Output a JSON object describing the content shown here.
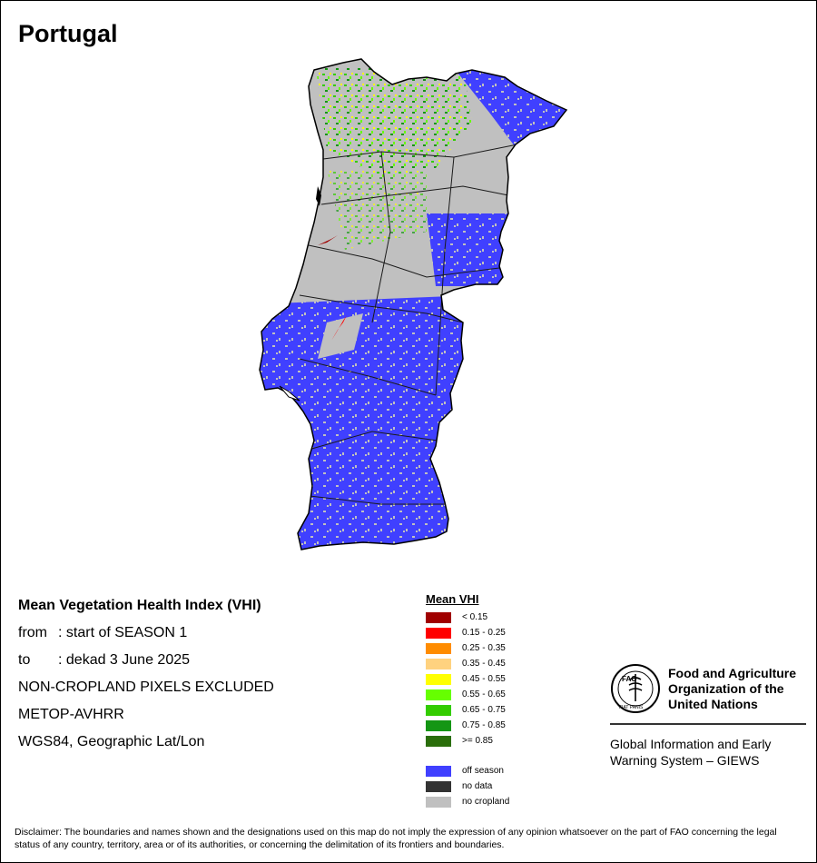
{
  "header": {
    "title": "Portugal"
  },
  "info": {
    "heading": "Mean Vegetation Health Index (VHI)",
    "from_label": "from",
    "from_value": ": start of SEASON 1",
    "to_label": "to",
    "to_value": ": dekad 3 June 2025",
    "exclusion": "NON-CROPLAND PIXELS EXCLUDED",
    "sensor": "METOP-AVHRR",
    "projection": "WGS84, Geographic Lat/Lon"
  },
  "legend": {
    "title": "Mean VHI",
    "classes": [
      {
        "label": "< 0.15",
        "color": "#a00000"
      },
      {
        "label": "0.15 - 0.25",
        "color": "#ff0000"
      },
      {
        "label": "0.25 - 0.35",
        "color": "#ff8c00"
      },
      {
        "label": "0.35 - 0.45",
        "color": "#ffd27f"
      },
      {
        "label": "0.45 - 0.55",
        "color": "#ffff00"
      },
      {
        "label": "0.55 - 0.65",
        "color": "#66ff00"
      },
      {
        "label": "0.65 - 0.75",
        "color": "#33cc00"
      },
      {
        "label": "0.75 - 0.85",
        "color": "#149614"
      },
      {
        "label": ">= 0.85",
        "color": "#2a6e0a"
      }
    ],
    "other": [
      {
        "label": "off season",
        "color": "#4040ff"
      },
      {
        "label": "no data",
        "color": "#333333"
      },
      {
        "label": "no cropland",
        "color": "#c0c0c0"
      }
    ]
  },
  "fao": {
    "org_line1": "Food and Agriculture",
    "org_line2": "Organization of the",
    "org_line3": "United Nations",
    "giews_line1": "Global Information and Early",
    "giews_line2": "Warning System – GIEWS",
    "logo_text": "FAO",
    "motto": "FIAT PANIS"
  },
  "disclaimer": "Disclaimer: The boundaries and names shown and the designations used on this map do not imply the expression of any opinion whatsoever on the part of FAO concerning the legal status of any country, territory, area or of its authorities, or concerning the delimitation of its frontiers and boundaries.",
  "colors": {
    "off_season": "#4040ff",
    "no_cropland": "#c0c0c0",
    "border": "#1a1a1a"
  }
}
